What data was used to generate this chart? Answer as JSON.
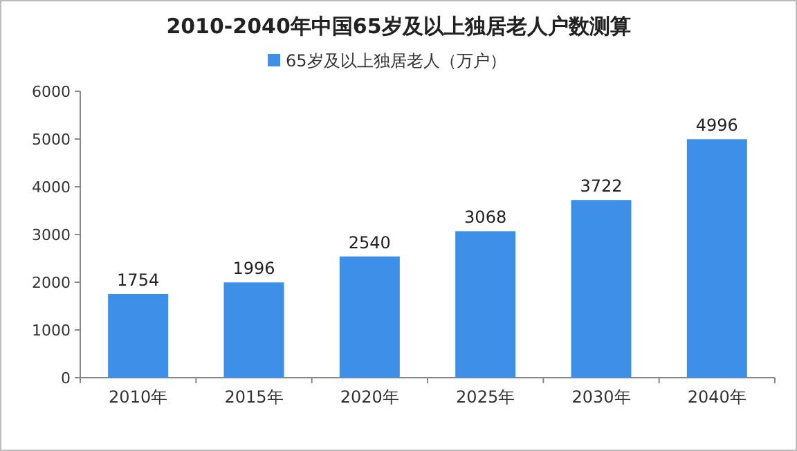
{
  "chart_data": {
    "type": "bar",
    "title": "2010-2040年中国65岁及以上独居老人户数测算",
    "categories": [
      "2010年",
      "2015年",
      "2020年",
      "2025年",
      "2030年",
      "2040年"
    ],
    "series": [
      {
        "name": "65岁及以上独居老人（万户）",
        "color": "#3d8fe8",
        "values": [
          1754,
          1996,
          2540,
          3068,
          3722,
          4996
        ]
      }
    ],
    "ylim": [
      0,
      6000
    ],
    "yticks": [
      0,
      1000,
      2000,
      3000,
      4000,
      5000,
      6000
    ],
    "data_labels": true,
    "legend": "top"
  }
}
